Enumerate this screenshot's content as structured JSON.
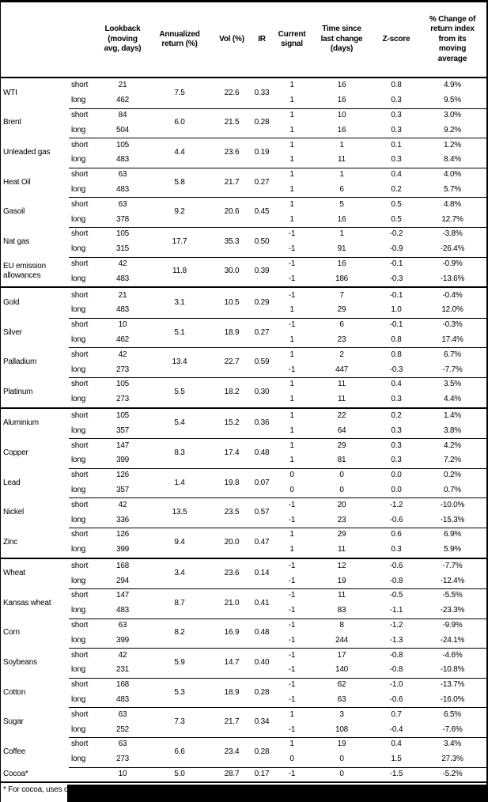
{
  "document": {
    "footnote": "* For cocoa, uses o"
  },
  "table": {
    "column_headers": [
      "Lookback (moving avg, days)",
      "Annualized return (%)",
      "Vol (%)",
      "IR",
      "Current signal",
      "Time since last change (days)",
      "Z-score",
      "% Change of return index from its moving average"
    ],
    "sections": [
      {
        "groups": [
          {
            "name": "WTI",
            "annualized_return": "7.5",
            "vol": "22.6",
            "ir": "0.33",
            "rows": [
              {
                "horizon": "short",
                "lookback": "21",
                "signal": "1",
                "days_since": "16",
                "z": "0.8",
                "pct": "4.9%"
              },
              {
                "horizon": "long",
                "lookback": "462",
                "signal": "1",
                "days_since": "16",
                "z": "0.3",
                "pct": "9.5%"
              }
            ]
          },
          {
            "name": "Brent",
            "annualized_return": "6.0",
            "vol": "21.5",
            "ir": "0.28",
            "rows": [
              {
                "horizon": "short",
                "lookback": "84",
                "signal": "1",
                "days_since": "10",
                "z": "0.3",
                "pct": "3.0%"
              },
              {
                "horizon": "long",
                "lookback": "504",
                "signal": "1",
                "days_since": "16",
                "z": "0.3",
                "pct": "9.2%"
              }
            ]
          },
          {
            "name": "Unleaded gas",
            "annualized_return": "4.4",
            "vol": "23.6",
            "ir": "0.19",
            "rows": [
              {
                "horizon": "short",
                "lookback": "105",
                "signal": "1",
                "days_since": "1",
                "z": "0.1",
                "pct": "1.2%"
              },
              {
                "horizon": "long",
                "lookback": "483",
                "signal": "1",
                "days_since": "11",
                "z": "0.3",
                "pct": "8.4%"
              }
            ]
          },
          {
            "name": "Heat Oil",
            "annualized_return": "5.8",
            "vol": "21.7",
            "ir": "0.27",
            "rows": [
              {
                "horizon": "short",
                "lookback": "63",
                "signal": "1",
                "days_since": "1",
                "z": "0.4",
                "pct": "4.0%"
              },
              {
                "horizon": "long",
                "lookback": "483",
                "signal": "1",
                "days_since": "6",
                "z": "0.2",
                "pct": "5.7%"
              }
            ]
          },
          {
            "name": "Gasoil",
            "annualized_return": "9.2",
            "vol": "20.6",
            "ir": "0.45",
            "rows": [
              {
                "horizon": "short",
                "lookback": "63",
                "signal": "1",
                "days_since": "5",
                "z": "0.5",
                "pct": "4.8%"
              },
              {
                "horizon": "long",
                "lookback": "378",
                "signal": "1",
                "days_since": "16",
                "z": "0.5",
                "pct": "12.7%"
              }
            ]
          },
          {
            "name": "Nat gas",
            "annualized_return": "17.7",
            "vol": "35.3",
            "ir": "0.50",
            "rows": [
              {
                "horizon": "short",
                "lookback": "105",
                "signal": "-1",
                "days_since": "1",
                "z": "-0.2",
                "pct": "-3.8%"
              },
              {
                "horizon": "long",
                "lookback": "315",
                "signal": "-1",
                "days_since": "91",
                "z": "-0.9",
                "pct": "-26.4%"
              }
            ]
          },
          {
            "name": "EU emission allowances",
            "annualized_return": "11.8",
            "vol": "30.0",
            "ir": "0.39",
            "rows": [
              {
                "horizon": "short",
                "lookback": "42",
                "signal": "-1",
                "days_since": "16",
                "z": "-0.1",
                "pct": "-0.9%"
              },
              {
                "horizon": "long",
                "lookback": "483",
                "signal": "-1",
                "days_since": "186",
                "z": "-0.3",
                "pct": "-13.6%"
              }
            ]
          }
        ]
      },
      {
        "groups": [
          {
            "name": "Gold",
            "annualized_return": "3.1",
            "vol": "10.5",
            "ir": "0.29",
            "rows": [
              {
                "horizon": "short",
                "lookback": "21",
                "signal": "-1",
                "days_since": "7",
                "z": "-0.1",
                "pct": "-0.4%"
              },
              {
                "horizon": "long",
                "lookback": "483",
                "signal": "1",
                "days_since": "29",
                "z": "1.0",
                "pct": "12.0%"
              }
            ]
          },
          {
            "name": "Silver",
            "annualized_return": "5.1",
            "vol": "18.9",
            "ir": "0.27",
            "rows": [
              {
                "horizon": "short",
                "lookback": "10",
                "signal": "-1",
                "days_since": "6",
                "z": "-0.1",
                "pct": "-0.3%"
              },
              {
                "horizon": "long",
                "lookback": "462",
                "signal": "1",
                "days_since": "23",
                "z": "0.8",
                "pct": "17.4%"
              }
            ]
          },
          {
            "name": "Palladium",
            "annualized_return": "13.4",
            "vol": "22.7",
            "ir": "0.59",
            "rows": [
              {
                "horizon": "short",
                "lookback": "42",
                "signal": "1",
                "days_since": "2",
                "z": "0.8",
                "pct": "6.7%"
              },
              {
                "horizon": "long",
                "lookback": "273",
                "signal": "-1",
                "days_since": "447",
                "z": "-0.3",
                "pct": "-7.7%"
              }
            ]
          },
          {
            "name": "Platinum",
            "annualized_return": "5.5",
            "vol": "18.2",
            "ir": "0.30",
            "rows": [
              {
                "horizon": "short",
                "lookback": "105",
                "signal": "1",
                "days_since": "11",
                "z": "0.4",
                "pct": "3.5%"
              },
              {
                "horizon": "long",
                "lookback": "273",
                "signal": "1",
                "days_since": "11",
                "z": "0.3",
                "pct": "4.4%"
              }
            ]
          }
        ]
      },
      {
        "groups": [
          {
            "name": "Aluminium",
            "annualized_return": "5.4",
            "vol": "15.2",
            "ir": "0.36",
            "rows": [
              {
                "horizon": "short",
                "lookback": "105",
                "signal": "1",
                "days_since": "22",
                "z": "0.2",
                "pct": "1.4%"
              },
              {
                "horizon": "long",
                "lookback": "357",
                "signal": "1",
                "days_since": "64",
                "z": "0.3",
                "pct": "3.8%"
              }
            ]
          },
          {
            "name": "Copper",
            "annualized_return": "8.3",
            "vol": "17.4",
            "ir": "0.48",
            "rows": [
              {
                "horizon": "short",
                "lookback": "147",
                "signal": "1",
                "days_since": "29",
                "z": "0.3",
                "pct": "4.2%"
              },
              {
                "horizon": "long",
                "lookback": "399",
                "signal": "1",
                "days_since": "81",
                "z": "0.3",
                "pct": "7.2%"
              }
            ]
          },
          {
            "name": "Lead",
            "annualized_return": "1.4",
            "vol": "19.8",
            "ir": "0.07",
            "rows": [
              {
                "horizon": "short",
                "lookback": "126",
                "signal": "0",
                "days_since": "0",
                "z": "0.0",
                "pct": "0.2%"
              },
              {
                "horizon": "long",
                "lookback": "357",
                "signal": "0",
                "days_since": "0",
                "z": "0.0",
                "pct": "0.7%"
              }
            ]
          },
          {
            "name": "Nickel",
            "annualized_return": "13.5",
            "vol": "23.5",
            "ir": "0.57",
            "rows": [
              {
                "horizon": "short",
                "lookback": "42",
                "signal": "-1",
                "days_since": "20",
                "z": "-1.2",
                "pct": "-10.0%"
              },
              {
                "horizon": "long",
                "lookback": "336",
                "signal": "-1",
                "days_since": "23",
                "z": "-0.6",
                "pct": "-15.3%"
              }
            ]
          },
          {
            "name": "Zinc",
            "annualized_return": "9.4",
            "vol": "20.0",
            "ir": "0.47",
            "rows": [
              {
                "horizon": "short",
                "lookback": "126",
                "signal": "1",
                "days_since": "29",
                "z": "0.6",
                "pct": "6.9%"
              },
              {
                "horizon": "long",
                "lookback": "399",
                "signal": "1",
                "days_since": "11",
                "z": "0.3",
                "pct": "5.9%"
              }
            ]
          }
        ]
      },
      {
        "groups": [
          {
            "name": "Wheat",
            "annualized_return": "3.4",
            "vol": "23.6",
            "ir": "0.14",
            "rows": [
              {
                "horizon": "short",
                "lookback": "168",
                "signal": "-1",
                "days_since": "12",
                "z": "-0.6",
                "pct": "-7.7%"
              },
              {
                "horizon": "long",
                "lookback": "294",
                "signal": "-1",
                "days_since": "19",
                "z": "-0.8",
                "pct": "-12.4%"
              }
            ]
          },
          {
            "name": "Kansas wheat",
            "annualized_return": "8.7",
            "vol": "21.0",
            "ir": "0.41",
            "rows": [
              {
                "horizon": "short",
                "lookback": "147",
                "signal": "-1",
                "days_since": "11",
                "z": "-0.5",
                "pct": "-5.5%"
              },
              {
                "horizon": "long",
                "lookback": "483",
                "signal": "-1",
                "days_since": "83",
                "z": "-1.1",
                "pct": "-23.3%"
              }
            ]
          },
          {
            "name": "Corn",
            "annualized_return": "8.2",
            "vol": "16.9",
            "ir": "0.48",
            "rows": [
              {
                "horizon": "short",
                "lookback": "63",
                "signal": "-1",
                "days_since": "8",
                "z": "-1.2",
                "pct": "-9.9%"
              },
              {
                "horizon": "long",
                "lookback": "399",
                "signal": "-1",
                "days_since": "244",
                "z": "-1.3",
                "pct": "-24.1%"
              }
            ]
          },
          {
            "name": "Soybeans",
            "annualized_return": "5.9",
            "vol": "14.7",
            "ir": "0.40",
            "rows": [
              {
                "horizon": "short",
                "lookback": "42",
                "signal": "-1",
                "days_since": "17",
                "z": "-0.8",
                "pct": "-4.6%"
              },
              {
                "horizon": "long",
                "lookback": "231",
                "signal": "-1",
                "days_since": "140",
                "z": "-0.8",
                "pct": "-10.8%"
              }
            ]
          },
          {
            "name": "Cotton",
            "annualized_return": "5.3",
            "vol": "18.9",
            "ir": "0.28",
            "rows": [
              {
                "horizon": "short",
                "lookback": "168",
                "signal": "-1",
                "days_since": "62",
                "z": "-1.0",
                "pct": "-13.7%"
              },
              {
                "horizon": "long",
                "lookback": "483",
                "signal": "-1",
                "days_since": "63",
                "z": "-0.6",
                "pct": "-16.0%"
              }
            ]
          },
          {
            "name": "Sugar",
            "annualized_return": "7.3",
            "vol": "21.7",
            "ir": "0.34",
            "rows": [
              {
                "horizon": "short",
                "lookback": "63",
                "signal": "1",
                "days_since": "3",
                "z": "0.7",
                "pct": "6.5%"
              },
              {
                "horizon": "long",
                "lookback": "252",
                "signal": "-1",
                "days_since": "108",
                "z": "-0.4",
                "pct": "-7.6%"
              }
            ]
          },
          {
            "name": "Coffee",
            "annualized_return": "6.6",
            "vol": "23.4",
            "ir": "0.28",
            "rows": [
              {
                "horizon": "short",
                "lookback": "63",
                "signal": "1",
                "days_since": "19",
                "z": "0.4",
                "pct": "3.4%"
              },
              {
                "horizon": "long",
                "lookback": "273",
                "signal": "0",
                "days_since": "0",
                "z": "1.5",
                "pct": "27.3%"
              }
            ]
          },
          {
            "name": "Cocoa*",
            "annualized_return": "5.0",
            "vol": "28.7",
            "ir": "0.17",
            "rows": [
              {
                "horizon": "",
                "lookback": "10",
                "signal": "-1",
                "days_since": "0",
                "z": "-1.5",
                "pct": "-5.2%"
              }
            ]
          }
        ]
      }
    ]
  }
}
